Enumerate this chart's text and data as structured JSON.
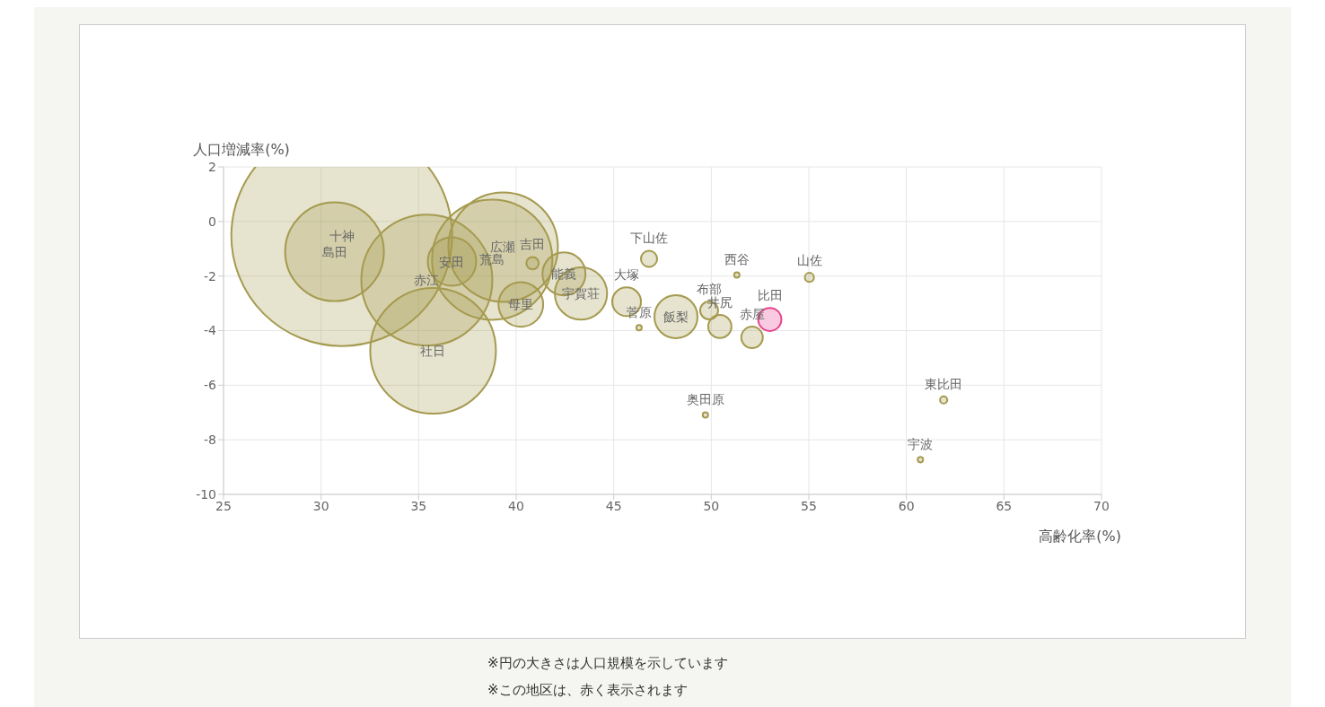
{
  "chart_data": {
    "type": "bubble",
    "xlabel": "高齢化率(%)",
    "ylabel": "人口増減率(%)",
    "x": [
      31.06,
      30.69,
      35.42,
      35.74,
      36.71,
      39.33,
      38.77,
      40.84,
      42.45,
      40.24,
      43.32,
      45.66,
      46.3,
      46.81,
      48.19,
      49.89,
      50.44,
      51.31,
      52.09,
      53.0,
      55.03,
      49.7,
      61.91,
      60.72
    ],
    "values": [
      -0.52,
      -1.11,
      -2.15,
      -4.74,
      -1.47,
      -0.94,
      -1.4,
      -1.53,
      -1.92,
      -3.04,
      -2.64,
      -2.94,
      -3.89,
      -1.37,
      -3.49,
      -3.26,
      -3.85,
      -1.96,
      -4.25,
      -3.59,
      -2.05,
      -7.09,
      -6.54,
      -8.73
    ],
    "sizes": [
      1,
      0.2,
      0.352,
      0.324,
      0.048,
      0.246,
      0.297,
      0.0032,
      0.038,
      0.041,
      0.056,
      0.017,
      0.0006,
      0.0054,
      0.038,
      0.0066,
      0.011,
      0.0006,
      0.0095,
      0.011,
      0.0017,
      0.0006,
      0.0011,
      0.0006
    ],
    "colors": [
      "#a59a4f",
      "#a59a4f",
      "#a59a4f",
      "#a59a4f",
      "#a59a4f",
      "#a59a4f",
      "#a59a4f",
      "#a59a4f",
      "#a59a4f",
      "#a59a4f",
      "#a59a4f",
      "#a59a4f",
      "#a59a4f",
      "#a59a4f",
      "#a59a4f",
      "#a59a4f",
      "#a59a4f",
      "#a59a4f",
      "#a59a4f",
      "#e8438f",
      "#a59a4f",
      "#a59a4f",
      "#a59a4f",
      "#a59a4f"
    ],
    "xlim": [
      25,
      70
    ],
    "xticks": [
      25,
      30,
      35,
      40,
      45,
      50,
      55,
      60,
      65,
      70
    ],
    "ylim": [
      -10,
      2
    ],
    "yticks": [
      -10,
      -8,
      -6,
      -4,
      -2,
      0,
      2
    ],
    "grid": true,
    "annotations": [
      {
        "text": "十神",
        "x": 31.06,
        "y": -0.52
      },
      {
        "text": "島田",
        "x": 30.69,
        "y": -1.11
      },
      {
        "text": "赤江",
        "x": 35.42,
        "y": -2.15
      },
      {
        "text": "社日",
        "x": 35.74,
        "y": -4.74
      },
      {
        "text": "安田",
        "x": 36.71,
        "y": -1.47
      },
      {
        "text": "広瀬",
        "x": 39.33,
        "y": -0.94
      },
      {
        "text": "荒島",
        "x": 38.77,
        "y": -1.4
      },
      {
        "text": "吉田",
        "x": 40.84,
        "y": -1.53
      },
      {
        "text": "能義",
        "x": 42.45,
        "y": -1.92
      },
      {
        "text": "母里",
        "x": 40.24,
        "y": -3.04
      },
      {
        "text": "宇賀荘",
        "x": 43.32,
        "y": -2.64
      },
      {
        "text": "大塚",
        "x": 45.66,
        "y": -2.94
      },
      {
        "text": "菅原",
        "x": 46.3,
        "y": -3.89
      },
      {
        "text": "下山佐",
        "x": 46.81,
        "y": -1.37
      },
      {
        "text": "飯梨",
        "x": 48.19,
        "y": -3.49
      },
      {
        "text": "布部",
        "x": 49.89,
        "y": -3.26
      },
      {
        "text": "井尻",
        "x": 50.44,
        "y": -3.85
      },
      {
        "text": "西谷",
        "x": 51.31,
        "y": -1.96
      },
      {
        "text": "赤屋",
        "x": 52.09,
        "y": -4.25
      },
      {
        "text": "比田",
        "x": 53.0,
        "y": -3.59
      },
      {
        "text": "山佐",
        "x": 55.03,
        "y": -2.05
      },
      {
        "text": "奥田原",
        "x": 49.7,
        "y": -7.09
      },
      {
        "text": "東比田",
        "x": 61.91,
        "y": -6.54
      },
      {
        "text": "宇波",
        "x": 60.72,
        "y": -8.73
      },
      "※円の大きさは人口規模を示しています",
      "※この地区は、赤く表示されます"
    ]
  }
}
